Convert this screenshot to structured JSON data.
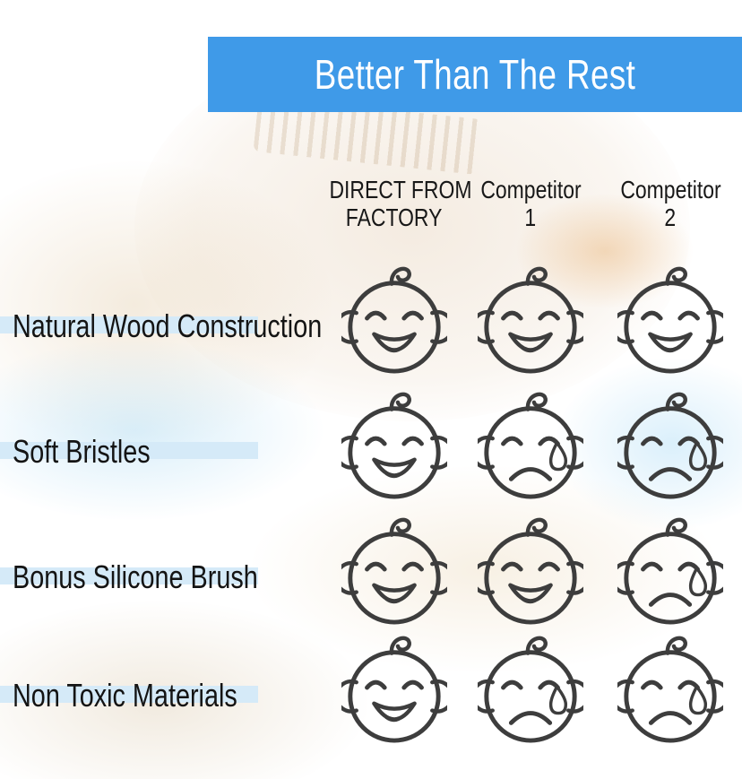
{
  "colors": {
    "banner_blue": "#3f9ae8",
    "highlight_blue": "#d5eaf8",
    "icon_line": "#3d3d3d",
    "header_text": "#181818",
    "title_text": "#ffffff"
  },
  "chart_data": {
    "type": "table",
    "title": "Better Than The Rest",
    "columns": [
      "DIRECT FROM FACTORY",
      "Competitor 1",
      "Competitor 2"
    ],
    "columns_lines": [
      [
        "DIRECT FROM",
        "FACTORY"
      ],
      [
        "Competitor",
        "1"
      ],
      [
        "Competitor",
        "2"
      ]
    ],
    "row_labels": [
      "Natural Wood Construction",
      "Soft Bristles",
      "Bonus Silicone Brush",
      "Non Toxic Materials"
    ],
    "cells": [
      [
        "happy",
        "happy",
        "happy"
      ],
      [
        "happy",
        "sad",
        "sad"
      ],
      [
        "happy",
        "happy",
        "sad"
      ],
      [
        "happy",
        "sad",
        "sad"
      ]
    ],
    "icons": {
      "happy": "smiling-baby-face-icon",
      "sad": "crying-baby-face-icon"
    }
  }
}
